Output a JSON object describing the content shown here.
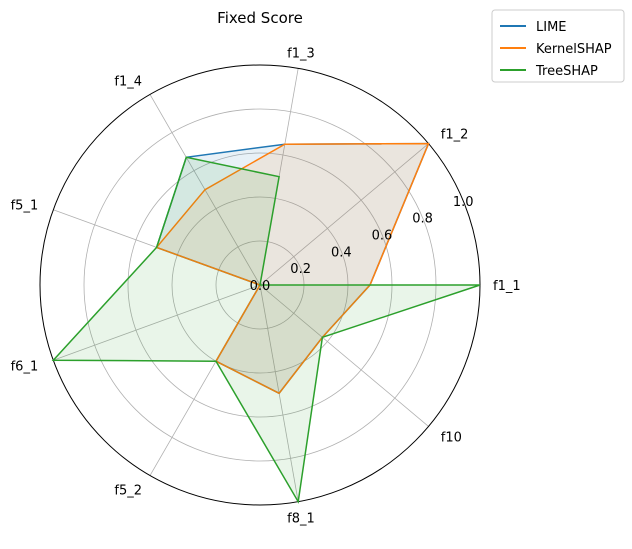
{
  "chart_data": {
    "type": "radar",
    "title": "Fixed Score",
    "categories": [
      "f1_1",
      "f1_2",
      "f1_3",
      "f1_4",
      "f5_1",
      "f6_1",
      "f5_2",
      "f8_1",
      "f10"
    ],
    "rlim": [
      0,
      1.0
    ],
    "radial_ticks": [
      0.0,
      0.2,
      0.4,
      0.6,
      0.8,
      1.0
    ],
    "radial_tick_labels": [
      "0.0",
      "0.2",
      "0.4",
      "0.6",
      "0.8",
      "1.0"
    ],
    "grid": true,
    "legend_position": "top-right",
    "series": [
      {
        "name": "LIME",
        "color": "#1f77b4",
        "values": [
          0.5,
          1.0,
          0.65,
          0.67,
          0.5,
          0.0,
          0.4,
          0.5,
          0.37
        ]
      },
      {
        "name": "KernelSHAP",
        "color": "#ff7f0e",
        "values": [
          0.5,
          1.0,
          0.65,
          0.5,
          0.5,
          0.0,
          0.4,
          0.5,
          0.37
        ]
      },
      {
        "name": "TreeSHAP",
        "color": "#2ca02c",
        "values": [
          1.0,
          0.0,
          0.5,
          0.67,
          0.5,
          1.0,
          0.4,
          1.0,
          0.37
        ]
      }
    ]
  }
}
